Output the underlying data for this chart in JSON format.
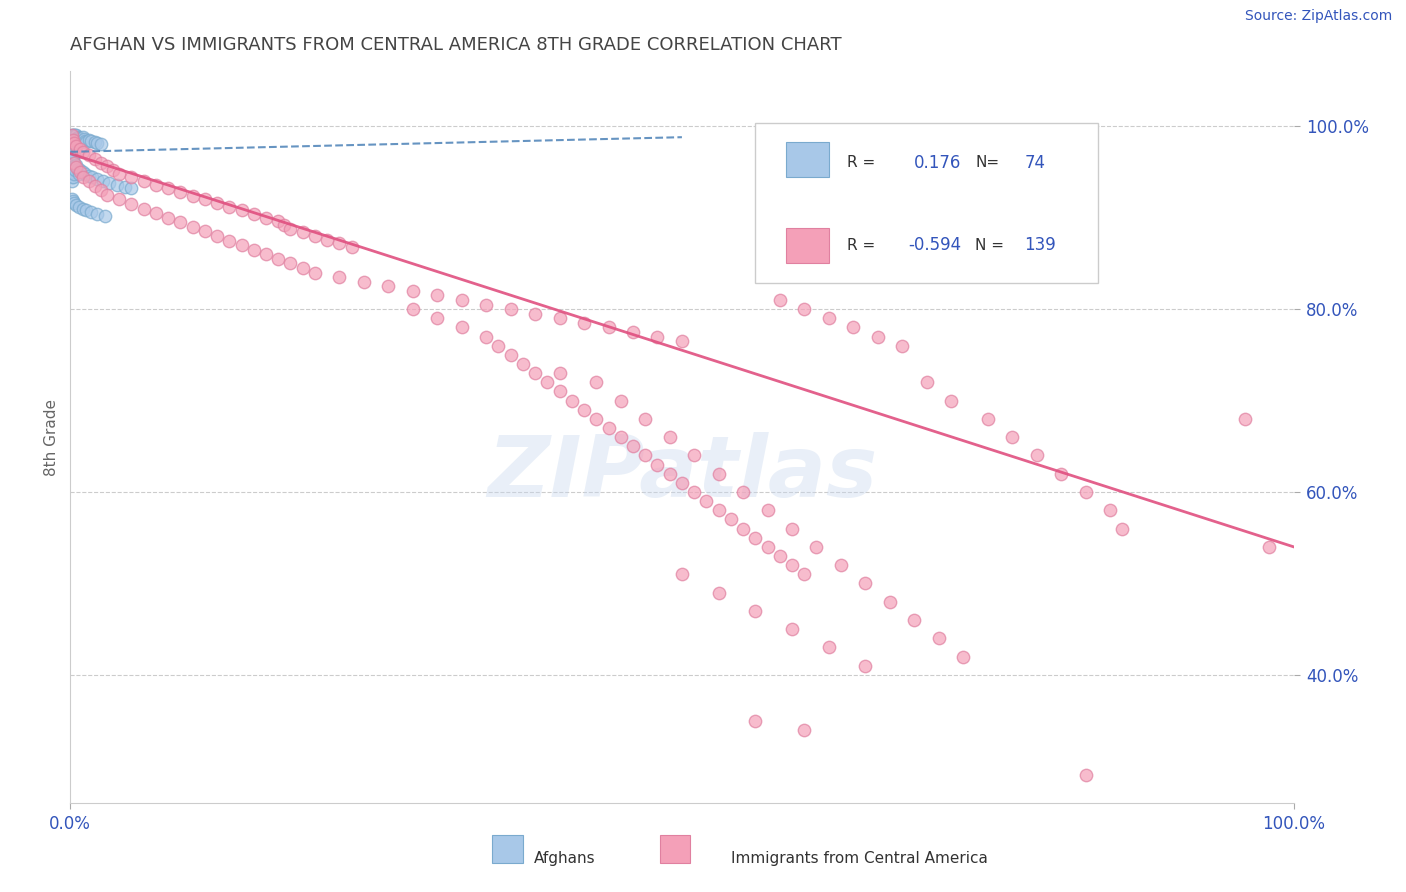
{
  "title": "AFGHAN VS IMMIGRANTS FROM CENTRAL AMERICA 8TH GRADE CORRELATION CHART",
  "source": "Source: ZipAtlas.com",
  "ylabel": "8th Grade",
  "xlim": [
    0.0,
    1.0
  ],
  "ylim": [
    0.26,
    1.06
  ],
  "ytick_values": [
    0.4,
    0.6,
    0.8,
    1.0
  ],
  "xtick_values": [
    0.0,
    1.0
  ],
  "watermark": "ZIPatlas",
  "blue_color": "#a8c8e8",
  "pink_color": "#f4a0b8",
  "blue_line_color": "#5588bb",
  "pink_line_color": "#e05080",
  "title_color": "#444444",
  "axis_label_color": "#3355bb",
  "blue_scatter": [
    [
      0.001,
      0.99
    ],
    [
      0.001,
      0.985
    ],
    [
      0.001,
      0.98
    ],
    [
      0.001,
      0.975
    ],
    [
      0.001,
      0.97
    ],
    [
      0.001,
      0.965
    ],
    [
      0.002,
      0.99
    ],
    [
      0.002,
      0.985
    ],
    [
      0.002,
      0.98
    ],
    [
      0.002,
      0.975
    ],
    [
      0.002,
      0.97
    ],
    [
      0.002,
      0.965
    ],
    [
      0.002,
      0.96
    ],
    [
      0.003,
      0.99
    ],
    [
      0.003,
      0.985
    ],
    [
      0.003,
      0.98
    ],
    [
      0.003,
      0.975
    ],
    [
      0.003,
      0.97
    ],
    [
      0.004,
      0.99
    ],
    [
      0.004,
      0.985
    ],
    [
      0.004,
      0.98
    ],
    [
      0.004,
      0.975
    ],
    [
      0.005,
      0.99
    ],
    [
      0.005,
      0.985
    ],
    [
      0.005,
      0.98
    ],
    [
      0.006,
      0.988
    ],
    [
      0.006,
      0.982
    ],
    [
      0.007,
      0.987
    ],
    [
      0.007,
      0.983
    ],
    [
      0.008,
      0.986
    ],
    [
      0.009,
      0.984
    ],
    [
      0.01,
      0.988
    ],
    [
      0.011,
      0.986
    ],
    [
      0.012,
      0.984
    ],
    [
      0.013,
      0.983
    ],
    [
      0.015,
      0.985
    ],
    [
      0.017,
      0.984
    ],
    [
      0.02,
      0.983
    ],
    [
      0.022,
      0.982
    ],
    [
      0.025,
      0.981
    ],
    [
      0.001,
      0.955
    ],
    [
      0.001,
      0.95
    ],
    [
      0.001,
      0.945
    ],
    [
      0.001,
      0.94
    ],
    [
      0.002,
      0.955
    ],
    [
      0.002,
      0.95
    ],
    [
      0.002,
      0.945
    ],
    [
      0.003,
      0.955
    ],
    [
      0.003,
      0.948
    ],
    [
      0.004,
      0.952
    ],
    [
      0.005,
      0.958
    ],
    [
      0.006,
      0.953
    ],
    [
      0.007,
      0.948
    ],
    [
      0.008,
      0.952
    ],
    [
      0.01,
      0.95
    ],
    [
      0.012,
      0.948
    ],
    [
      0.015,
      0.946
    ],
    [
      0.018,
      0.944
    ],
    [
      0.022,
      0.942
    ],
    [
      0.027,
      0.94
    ],
    [
      0.032,
      0.938
    ],
    [
      0.038,
      0.936
    ],
    [
      0.045,
      0.934
    ],
    [
      0.05,
      0.932
    ],
    [
      0.001,
      0.92
    ],
    [
      0.002,
      0.918
    ],
    [
      0.003,
      0.916
    ],
    [
      0.005,
      0.914
    ],
    [
      0.007,
      0.912
    ],
    [
      0.01,
      0.91
    ],
    [
      0.013,
      0.908
    ],
    [
      0.017,
      0.906
    ],
    [
      0.022,
      0.904
    ],
    [
      0.028,
      0.902
    ]
  ],
  "pink_scatter": [
    [
      0.001,
      0.99
    ],
    [
      0.002,
      0.985
    ],
    [
      0.003,
      0.982
    ],
    [
      0.005,
      0.978
    ],
    [
      0.008,
      0.975
    ],
    [
      0.01,
      0.972
    ],
    [
      0.015,
      0.968
    ],
    [
      0.02,
      0.964
    ],
    [
      0.025,
      0.96
    ],
    [
      0.03,
      0.956
    ],
    [
      0.035,
      0.952
    ],
    [
      0.04,
      0.948
    ],
    [
      0.05,
      0.944
    ],
    [
      0.06,
      0.94
    ],
    [
      0.07,
      0.936
    ],
    [
      0.08,
      0.932
    ],
    [
      0.09,
      0.928
    ],
    [
      0.1,
      0.924
    ],
    [
      0.11,
      0.92
    ],
    [
      0.12,
      0.916
    ],
    [
      0.13,
      0.912
    ],
    [
      0.14,
      0.908
    ],
    [
      0.15,
      0.904
    ],
    [
      0.16,
      0.9
    ],
    [
      0.17,
      0.896
    ],
    [
      0.175,
      0.892
    ],
    [
      0.18,
      0.888
    ],
    [
      0.19,
      0.884
    ],
    [
      0.2,
      0.88
    ],
    [
      0.21,
      0.876
    ],
    [
      0.22,
      0.872
    ],
    [
      0.23,
      0.868
    ],
    [
      0.003,
      0.96
    ],
    [
      0.005,
      0.955
    ],
    [
      0.008,
      0.95
    ],
    [
      0.01,
      0.945
    ],
    [
      0.015,
      0.94
    ],
    [
      0.02,
      0.935
    ],
    [
      0.025,
      0.93
    ],
    [
      0.03,
      0.925
    ],
    [
      0.04,
      0.92
    ],
    [
      0.05,
      0.915
    ],
    [
      0.06,
      0.91
    ],
    [
      0.07,
      0.905
    ],
    [
      0.08,
      0.9
    ],
    [
      0.09,
      0.895
    ],
    [
      0.1,
      0.89
    ],
    [
      0.11,
      0.885
    ],
    [
      0.12,
      0.88
    ],
    [
      0.13,
      0.875
    ],
    [
      0.14,
      0.87
    ],
    [
      0.15,
      0.865
    ],
    [
      0.16,
      0.86
    ],
    [
      0.17,
      0.855
    ],
    [
      0.18,
      0.85
    ],
    [
      0.19,
      0.845
    ],
    [
      0.2,
      0.84
    ],
    [
      0.22,
      0.835
    ],
    [
      0.24,
      0.83
    ],
    [
      0.26,
      0.825
    ],
    [
      0.28,
      0.82
    ],
    [
      0.3,
      0.815
    ],
    [
      0.32,
      0.81
    ],
    [
      0.34,
      0.805
    ],
    [
      0.36,
      0.8
    ],
    [
      0.38,
      0.795
    ],
    [
      0.4,
      0.79
    ],
    [
      0.42,
      0.785
    ],
    [
      0.44,
      0.78
    ],
    [
      0.46,
      0.775
    ],
    [
      0.48,
      0.77
    ],
    [
      0.5,
      0.765
    ],
    [
      0.28,
      0.8
    ],
    [
      0.3,
      0.79
    ],
    [
      0.32,
      0.78
    ],
    [
      0.34,
      0.77
    ],
    [
      0.35,
      0.76
    ],
    [
      0.36,
      0.75
    ],
    [
      0.37,
      0.74
    ],
    [
      0.38,
      0.73
    ],
    [
      0.39,
      0.72
    ],
    [
      0.4,
      0.71
    ],
    [
      0.41,
      0.7
    ],
    [
      0.42,
      0.69
    ],
    [
      0.43,
      0.68
    ],
    [
      0.44,
      0.67
    ],
    [
      0.45,
      0.66
    ],
    [
      0.46,
      0.65
    ],
    [
      0.47,
      0.64
    ],
    [
      0.48,
      0.63
    ],
    [
      0.49,
      0.62
    ],
    [
      0.5,
      0.61
    ],
    [
      0.51,
      0.6
    ],
    [
      0.52,
      0.59
    ],
    [
      0.53,
      0.58
    ],
    [
      0.54,
      0.57
    ],
    [
      0.55,
      0.56
    ],
    [
      0.56,
      0.55
    ],
    [
      0.57,
      0.54
    ],
    [
      0.58,
      0.53
    ],
    [
      0.59,
      0.52
    ],
    [
      0.6,
      0.51
    ],
    [
      0.4,
      0.73
    ],
    [
      0.43,
      0.72
    ],
    [
      0.45,
      0.7
    ],
    [
      0.47,
      0.68
    ],
    [
      0.49,
      0.66
    ],
    [
      0.51,
      0.64
    ],
    [
      0.53,
      0.62
    ],
    [
      0.55,
      0.6
    ],
    [
      0.57,
      0.58
    ],
    [
      0.59,
      0.56
    ],
    [
      0.61,
      0.54
    ],
    [
      0.63,
      0.52
    ],
    [
      0.65,
      0.5
    ],
    [
      0.67,
      0.48
    ],
    [
      0.69,
      0.46
    ],
    [
      0.71,
      0.44
    ],
    [
      0.73,
      0.42
    ],
    [
      0.58,
      0.81
    ],
    [
      0.6,
      0.8
    ],
    [
      0.62,
      0.79
    ],
    [
      0.64,
      0.78
    ],
    [
      0.66,
      0.77
    ],
    [
      0.68,
      0.76
    ],
    [
      0.7,
      0.72
    ],
    [
      0.72,
      0.7
    ],
    [
      0.75,
      0.68
    ],
    [
      0.77,
      0.66
    ],
    [
      0.79,
      0.64
    ],
    [
      0.81,
      0.62
    ],
    [
      0.83,
      0.6
    ],
    [
      0.85,
      0.58
    ],
    [
      0.86,
      0.56
    ],
    [
      0.96,
      0.68
    ],
    [
      0.98,
      0.54
    ],
    [
      0.5,
      0.51
    ],
    [
      0.53,
      0.49
    ],
    [
      0.56,
      0.47
    ],
    [
      0.59,
      0.45
    ],
    [
      0.62,
      0.43
    ],
    [
      0.65,
      0.41
    ],
    [
      0.56,
      0.35
    ],
    [
      0.6,
      0.34
    ],
    [
      0.83,
      0.29
    ]
  ],
  "pink_trend_x": [
    0.0,
    1.0
  ],
  "pink_trend_y": [
    0.97,
    0.54
  ],
  "blue_trend_x": [
    0.0,
    0.5
  ],
  "blue_trend_y": [
    0.972,
    0.988
  ]
}
